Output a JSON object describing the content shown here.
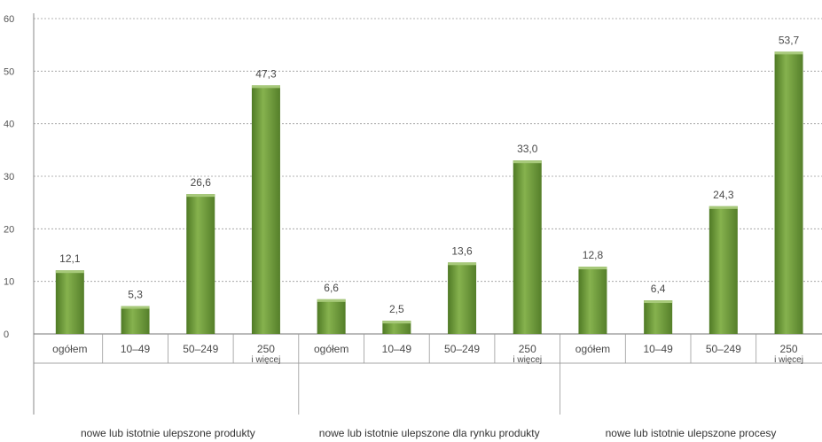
{
  "chart_data": {
    "type": "bar",
    "ylim": [
      0,
      60
    ],
    "yticks": [
      "0",
      "10",
      "20",
      "30",
      "40",
      "50",
      "60"
    ],
    "grid": true,
    "bar_color": "#6e9b3c",
    "groups": [
      {
        "label": "nowe lub istotnie ulepszone produkty",
        "categories": [
          "ogółem",
          "10–49",
          "50–249",
          "250 i więcej"
        ],
        "values": [
          12.1,
          5.3,
          26.6,
          47.3
        ],
        "data_labels": [
          "12,1",
          "5,3",
          "26,6",
          "47,3"
        ]
      },
      {
        "label": "nowe lub istotnie ulepszone dla rynku produkty",
        "categories": [
          "ogółem",
          "10–49",
          "50–249",
          "250 i więcej"
        ],
        "values": [
          6.6,
          2.5,
          13.6,
          33.0
        ],
        "data_labels": [
          "6,6",
          "2,5",
          "13,6",
          "33,0"
        ]
      },
      {
        "label": "nowe lub istotnie ulepszone procesy",
        "categories": [
          "ogółem",
          "10–49",
          "50–249",
          "250 i więcej"
        ],
        "values": [
          12.8,
          6.4,
          24.3,
          53.7
        ],
        "data_labels": [
          "12,8",
          "6,4",
          "24,3",
          "53,7"
        ]
      }
    ]
  }
}
